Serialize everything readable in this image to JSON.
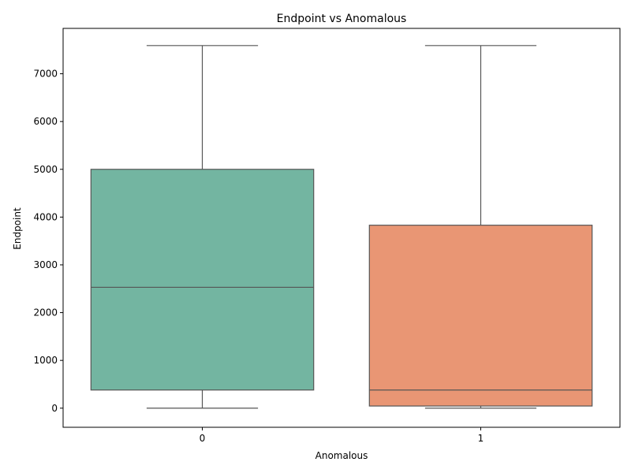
{
  "chart_data": {
    "type": "box",
    "title": "Endpoint vs Anomalous",
    "xlabel": "Anomalous",
    "ylabel": "Endpoint",
    "categories": [
      "0",
      "1"
    ],
    "ylim": [
      -400,
      7950
    ],
    "yticks": [
      0,
      1000,
      2000,
      3000,
      4000,
      5000,
      6000,
      7000
    ],
    "grid": false,
    "boxes": [
      {
        "category": "0",
        "whisker_low": 0,
        "q1": 380,
        "median": 2530,
        "q3": 5000,
        "whisker_high": 7590,
        "color": "#73b5a1"
      },
      {
        "category": "1",
        "whisker_low": 0,
        "q1": 45,
        "median": 380,
        "q3": 3830,
        "whisker_high": 7590,
        "color": "#e99674"
      }
    ],
    "line_color": "#555555"
  }
}
